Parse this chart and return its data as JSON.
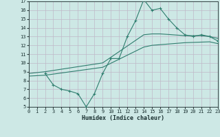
{
  "bg_color": "#cde8e5",
  "line_color": "#2e7d6e",
  "line1_x": [
    2,
    3,
    4,
    5,
    6,
    7,
    8,
    9,
    10,
    11,
    12,
    13,
    14,
    15,
    16,
    17,
    18,
    19,
    20,
    21,
    22,
    23
  ],
  "line1_y": [
    8.8,
    7.5,
    7.0,
    6.8,
    6.5,
    5.0,
    6.5,
    8.8,
    10.5,
    10.5,
    13.0,
    14.8,
    17.2,
    16.0,
    16.2,
    15.0,
    14.0,
    13.2,
    13.0,
    13.2,
    13.0,
    12.5
  ],
  "line2_x": [
    0,
    2,
    9,
    14,
    15,
    16,
    19,
    20,
    21,
    22,
    23
  ],
  "line2_y": [
    8.8,
    9.0,
    10.0,
    13.2,
    13.3,
    13.3,
    13.1,
    13.1,
    13.1,
    13.0,
    12.8
  ],
  "line3_x": [
    0,
    2,
    9,
    14,
    15,
    19,
    22,
    23
  ],
  "line3_y": [
    8.5,
    8.6,
    9.5,
    11.8,
    12.0,
    12.3,
    12.4,
    12.2
  ],
  "xlabel": "Humidex (Indice chaleur)",
  "xlim": [
    0,
    23
  ],
  "ylim": [
    5,
    17
  ],
  "xticks": [
    0,
    1,
    2,
    3,
    4,
    5,
    6,
    7,
    8,
    9,
    10,
    11,
    12,
    13,
    14,
    15,
    16,
    17,
    18,
    19,
    20,
    21,
    22,
    23
  ],
  "yticks": [
    5,
    6,
    7,
    8,
    9,
    10,
    11,
    12,
    13,
    14,
    15,
    16,
    17
  ]
}
